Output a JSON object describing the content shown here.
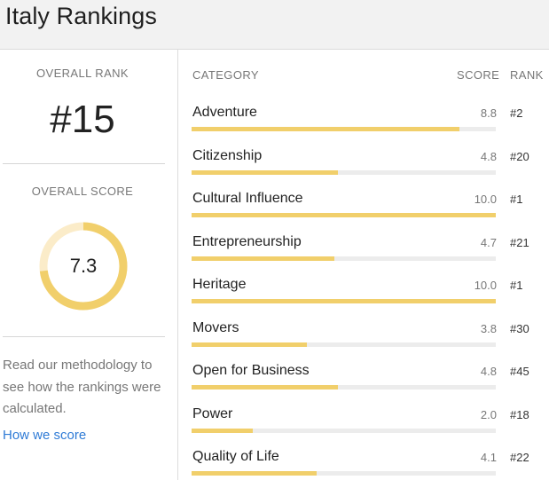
{
  "title": "Italy Rankings",
  "overall": {
    "rank_label": "OVERALL RANK",
    "rank": "#15",
    "score_label": "OVERALL SCORE",
    "score": "7.3",
    "score_fraction": 0.73
  },
  "methodology": {
    "text": "Read our methodology to see how the rankings were calculated.",
    "link": "How we score"
  },
  "table": {
    "headers": {
      "category": "CATEGORY",
      "score": "SCORE",
      "rank": "RANK"
    },
    "rows": [
      {
        "category": "Adventure",
        "score": "8.8",
        "rank": "#2",
        "value": 8.8
      },
      {
        "category": "Citizenship",
        "score": "4.8",
        "rank": "#20",
        "value": 4.8
      },
      {
        "category": "Cultural Influence",
        "score": "10.0",
        "rank": "#1",
        "value": 10.0
      },
      {
        "category": "Entrepreneurship",
        "score": "4.7",
        "rank": "#21",
        "value": 4.7
      },
      {
        "category": "Heritage",
        "score": "10.0",
        "rank": "#1",
        "value": 10.0
      },
      {
        "category": "Movers",
        "score": "3.8",
        "rank": "#30",
        "value": 3.8
      },
      {
        "category": "Open for Business",
        "score": "4.8",
        "rank": "#45",
        "value": 4.8
      },
      {
        "category": "Power",
        "score": "2.0",
        "rank": "#18",
        "value": 2.0
      },
      {
        "category": "Quality of Life",
        "score": "4.1",
        "rank": "#22",
        "value": 4.1
      }
    ]
  },
  "colors": {
    "bar_fill": "#f1cf6b",
    "bar_track": "#ececec",
    "ring_fill": "#f1cf6b",
    "ring_track": "#fbecc9",
    "link": "#2f7bd6"
  }
}
